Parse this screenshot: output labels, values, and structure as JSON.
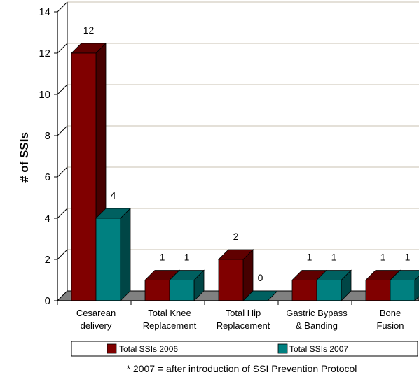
{
  "chart_data": {
    "type": "bar",
    "categories": [
      [
        "Cesarean",
        "delivery"
      ],
      [
        "Total Knee",
        "Replacement"
      ],
      [
        "Total Hip",
        "Replacement"
      ],
      [
        "Gastric Bypass",
        "& Banding"
      ],
      [
        "Bone",
        "Fusion"
      ]
    ],
    "series": [
      {
        "name": "Total SSIs 2006",
        "values": [
          12,
          1,
          2,
          1,
          1
        ],
        "color": "#800000"
      },
      {
        "name": "Total SSIs 2007",
        "values": [
          4,
          1,
          0,
          1,
          1
        ],
        "color": "#008080"
      }
    ],
    "data_labels": [
      [
        "12",
        "4"
      ],
      [
        "1",
        "1"
      ],
      [
        "2",
        "0"
      ],
      [
        "1",
        "1"
      ],
      [
        "1",
        "1"
      ]
    ],
    "ylabel": "# of SSIs",
    "xlabel": "",
    "ylim": [
      0,
      14
    ],
    "yticks": [
      "0",
      "2",
      "4",
      "6",
      "8",
      "10",
      "12",
      "14"
    ],
    "grid": true,
    "legend_position": "bottom",
    "footnote": "* 2007 = after introduction of SSI Prevention Protocol",
    "colors": {
      "wall": "#ffffff",
      "floor": "#808080",
      "gridline": "#c8c0b0"
    }
  }
}
